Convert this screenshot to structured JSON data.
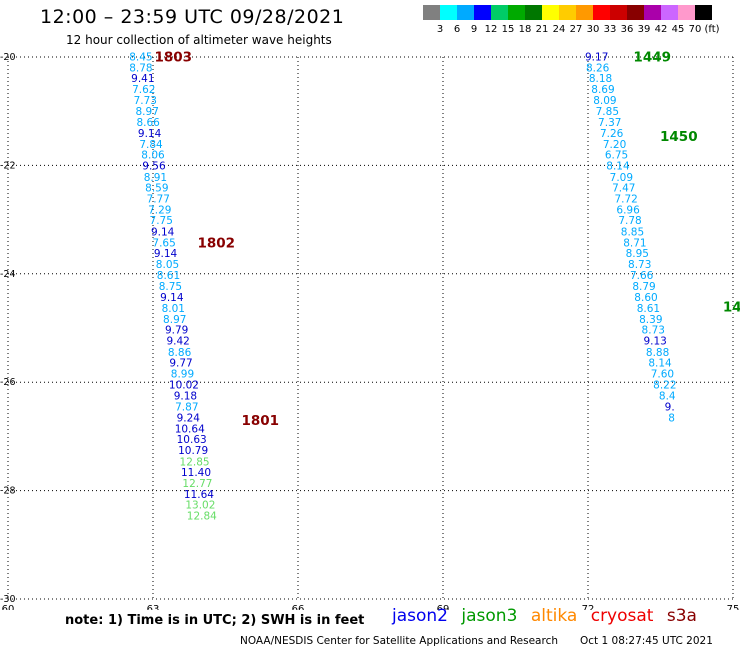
{
  "header": {
    "title": "12:00 – 23:59 UTC 09/28/2021",
    "subtitle": "12 hour collection of altimeter wave heights"
  },
  "colorbar": {
    "bins": [
      {
        "color": "#808080",
        "label": "3"
      },
      {
        "color": "#00ffff",
        "label": "6"
      },
      {
        "color": "#00aaff",
        "label": "9"
      },
      {
        "color": "#0000ff",
        "label": "12"
      },
      {
        "color": "#00cc66",
        "label": "15"
      },
      {
        "color": "#00aa00",
        "label": "18"
      },
      {
        "color": "#007700",
        "label": "21"
      },
      {
        "color": "#ffff00",
        "label": "24"
      },
      {
        "color": "#ffcc00",
        "label": "27"
      },
      {
        "color": "#ff9900",
        "label": "30"
      },
      {
        "color": "#ff0000",
        "label": "33"
      },
      {
        "color": "#cc0000",
        "label": "36"
      },
      {
        "color": "#880000",
        "label": "39"
      },
      {
        "color": "#aa00aa",
        "label": "42"
      },
      {
        "color": "#cc66ff",
        "label": "45"
      },
      {
        "color": "#ff99cc",
        "label": "70"
      },
      {
        "color": "#000000",
        "label": "(ft)"
      }
    ]
  },
  "map": {
    "lon_range": [
      60,
      75
    ],
    "lat_range": [
      -30,
      -20
    ],
    "lon_ticks": [
      "60",
      "63",
      "66",
      "69",
      "72",
      "75"
    ],
    "lat_ticks": [
      "-20",
      "-22",
      "-24",
      "-26",
      "-28",
      "-30"
    ]
  },
  "tracks": [
    {
      "obs": [
        {
          "lon": 62.75,
          "lat": -20.0,
          "value": "8.45",
          "color": "#00aaff"
        },
        {
          "lon": 62.75,
          "lat": -20.2,
          "value": "8.78",
          "color": "#00aaff"
        },
        {
          "lon": 62.79,
          "lat": -20.4,
          "value": "9.41",
          "color": "#0000cc"
        },
        {
          "lon": 62.81,
          "lat": -20.6,
          "value": "7.62",
          "color": "#00aaff"
        },
        {
          "lon": 62.84,
          "lat": -20.8,
          "value": "7.73",
          "color": "#00aaff"
        },
        {
          "lon": 62.88,
          "lat": -21.01,
          "value": "8.97",
          "color": "#00aaff"
        },
        {
          "lon": 62.9,
          "lat": -21.21,
          "value": "8.66",
          "color": "#00aaff"
        },
        {
          "lon": 62.93,
          "lat": -21.41,
          "value": "9.14",
          "color": "#0000cc"
        },
        {
          "lon": 62.96,
          "lat": -21.61,
          "value": "7.84",
          "color": "#00aaff"
        },
        {
          "lon": 63.0,
          "lat": -21.81,
          "value": "8.06",
          "color": "#00aaff"
        },
        {
          "lon": 63.02,
          "lat": -22.01,
          "value": "9.56",
          "color": "#0000cc"
        },
        {
          "lon": 63.05,
          "lat": -22.22,
          "value": "8.91",
          "color": "#00aaff"
        },
        {
          "lon": 63.08,
          "lat": -22.42,
          "value": "8.59",
          "color": "#00aaff"
        },
        {
          "lon": 63.11,
          "lat": -22.62,
          "value": "7.77",
          "color": "#00aaff"
        },
        {
          "lon": 63.14,
          "lat": -22.82,
          "value": "7.29",
          "color": "#00aaff"
        },
        {
          "lon": 63.17,
          "lat": -23.02,
          "value": "7.75",
          "color": "#00aaff"
        },
        {
          "lon": 63.2,
          "lat": -23.23,
          "value": "9.14",
          "color": "#0000cc"
        },
        {
          "lon": 63.23,
          "lat": -23.43,
          "value": "7.65",
          "color": "#00aaff"
        },
        {
          "lon": 63.26,
          "lat": -23.63,
          "value": "9.14",
          "color": "#0000cc"
        },
        {
          "lon": 63.3,
          "lat": -23.83,
          "value": "8.05",
          "color": "#00aaff"
        },
        {
          "lon": 63.32,
          "lat": -24.03,
          "value": "8.61",
          "color": "#00aaff"
        },
        {
          "lon": 63.36,
          "lat": -24.23,
          "value": "8.75",
          "color": "#00aaff"
        },
        {
          "lon": 63.39,
          "lat": -24.44,
          "value": "9.14",
          "color": "#0000cc"
        },
        {
          "lon": 63.42,
          "lat": -24.64,
          "value": "8.01",
          "color": "#00aaff"
        },
        {
          "lon": 63.45,
          "lat": -24.84,
          "value": "8.97",
          "color": "#00aaff"
        },
        {
          "lon": 63.49,
          "lat": -25.04,
          "value": "9.79",
          "color": "#0000cc"
        },
        {
          "lon": 63.52,
          "lat": -25.24,
          "value": "9.42",
          "color": "#0000cc"
        },
        {
          "lon": 63.55,
          "lat": -25.45,
          "value": "8.86",
          "color": "#00aaff"
        },
        {
          "lon": 63.58,
          "lat": -25.65,
          "value": "9.77",
          "color": "#0000cc"
        },
        {
          "lon": 63.61,
          "lat": -25.85,
          "value": "8.99",
          "color": "#00aaff"
        },
        {
          "lon": 63.64,
          "lat": -26.05,
          "value": "10.02",
          "color": "#0000cc"
        },
        {
          "lon": 63.67,
          "lat": -26.25,
          "value": "9.18",
          "color": "#0000cc"
        },
        {
          "lon": 63.7,
          "lat": -26.46,
          "value": "7.87",
          "color": "#00aaff"
        },
        {
          "lon": 63.73,
          "lat": -26.66,
          "value": "9.24",
          "color": "#0000cc"
        },
        {
          "lon": 63.76,
          "lat": -26.86,
          "value": "10.64",
          "color": "#0000cc"
        },
        {
          "lon": 63.8,
          "lat": -27.06,
          "value": "10.63",
          "color": "#0000cc"
        },
        {
          "lon": 63.83,
          "lat": -27.26,
          "value": "10.79",
          "color": "#0000cc"
        },
        {
          "lon": 63.86,
          "lat": -27.47,
          "value": "12.85",
          "color": "#66dd66"
        },
        {
          "lon": 63.89,
          "lat": -27.67,
          "value": "11.40",
          "color": "#0000cc"
        },
        {
          "lon": 63.92,
          "lat": -27.87,
          "value": "12.77",
          "color": "#66dd66"
        },
        {
          "lon": 63.95,
          "lat": -28.07,
          "value": "11.64",
          "color": "#0000cc"
        },
        {
          "lon": 63.98,
          "lat": -28.27,
          "value": "13.02",
          "color": "#66dd66"
        },
        {
          "lon": 64.01,
          "lat": -28.47,
          "value": "12.84",
          "color": "#66dd66"
        }
      ],
      "time_labels": [
        {
          "lon": 63.03,
          "lat": -20.0,
          "text": "1803",
          "color": "#880000"
        },
        {
          "lon": 63.92,
          "lat": -23.43,
          "text": "1802",
          "color": "#880000"
        },
        {
          "lon": 64.83,
          "lat": -26.71,
          "text": "1801",
          "color": "#880000"
        }
      ]
    },
    {
      "obs": [
        {
          "lon": 72.18,
          "lat": -20.0,
          "value": "9.17",
          "color": "#0000cc"
        },
        {
          "lon": 72.2,
          "lat": -20.2,
          "value": "8.26",
          "color": "#00aaff"
        },
        {
          "lon": 72.26,
          "lat": -20.4,
          "value": "8.18",
          "color": "#00aaff"
        },
        {
          "lon": 72.31,
          "lat": -20.6,
          "value": "8.69",
          "color": "#00aaff"
        },
        {
          "lon": 72.35,
          "lat": -20.8,
          "value": "8.09",
          "color": "#00aaff"
        },
        {
          "lon": 72.4,
          "lat": -21.01,
          "value": "7.85",
          "color": "#00aaff"
        },
        {
          "lon": 72.45,
          "lat": -21.21,
          "value": "7.37",
          "color": "#00aaff"
        },
        {
          "lon": 72.49,
          "lat": -21.41,
          "value": "7.26",
          "color": "#00aaff"
        },
        {
          "lon": 72.55,
          "lat": -21.61,
          "value": "7.20",
          "color": "#00aaff"
        },
        {
          "lon": 72.59,
          "lat": -21.81,
          "value": "6.75",
          "color": "#00aaff"
        },
        {
          "lon": 72.62,
          "lat": -22.01,
          "value": "8.14",
          "color": "#00aaff"
        },
        {
          "lon": 72.69,
          "lat": -22.22,
          "value": "7.09",
          "color": "#00aaff"
        },
        {
          "lon": 72.74,
          "lat": -22.42,
          "value": "7.47",
          "color": "#00aaff"
        },
        {
          "lon": 72.79,
          "lat": -22.62,
          "value": "7.72",
          "color": "#00aaff"
        },
        {
          "lon": 72.83,
          "lat": -22.82,
          "value": "6.96",
          "color": "#00aaff"
        },
        {
          "lon": 72.87,
          "lat": -23.02,
          "value": "7.78",
          "color": "#00aaff"
        },
        {
          "lon": 72.92,
          "lat": -23.23,
          "value": "8.85",
          "color": "#00aaff"
        },
        {
          "lon": 72.97,
          "lat": -23.43,
          "value": "8.71",
          "color": "#00aaff"
        },
        {
          "lon": 73.02,
          "lat": -23.63,
          "value": "8.95",
          "color": "#00aaff"
        },
        {
          "lon": 73.07,
          "lat": -23.83,
          "value": "8.73",
          "color": "#00aaff"
        },
        {
          "lon": 73.11,
          "lat": -24.03,
          "value": "7.66",
          "color": "#00aaff"
        },
        {
          "lon": 73.16,
          "lat": -24.23,
          "value": "8.79",
          "color": "#00aaff"
        },
        {
          "lon": 73.2,
          "lat": -24.44,
          "value": "8.60",
          "color": "#00aaff"
        },
        {
          "lon": 73.25,
          "lat": -24.64,
          "value": "8.61",
          "color": "#00aaff"
        },
        {
          "lon": 73.3,
          "lat": -24.84,
          "value": "8.39",
          "color": "#00aaff"
        },
        {
          "lon": 73.35,
          "lat": -25.04,
          "value": "8.73",
          "color": "#00aaff"
        },
        {
          "lon": 73.39,
          "lat": -25.24,
          "value": "9.13",
          "color": "#0000cc"
        },
        {
          "lon": 73.44,
          "lat": -25.45,
          "value": "8.88",
          "color": "#00aaff"
        },
        {
          "lon": 73.49,
          "lat": -25.65,
          "value": "8.14",
          "color": "#00aaff"
        },
        {
          "lon": 73.54,
          "lat": -25.85,
          "value": "7.60",
          "color": "#00aaff"
        },
        {
          "lon": 73.59,
          "lat": -26.05,
          "value": "8.22",
          "color": "#00aaff"
        },
        {
          "lon": 73.64,
          "lat": -26.25,
          "value": "8.4",
          "color": "#00aaff"
        },
        {
          "lon": 73.69,
          "lat": -26.46,
          "value": "9.",
          "color": "#0000cc"
        },
        {
          "lon": 73.73,
          "lat": -26.66,
          "value": "8",
          "color": "#00aaff"
        }
      ],
      "time_labels": [
        {
          "lon": 72.94,
          "lat": -20.0,
          "text": "1449",
          "color": "#008800"
        },
        {
          "lon": 73.49,
          "lat": -21.47,
          "text": "1450",
          "color": "#008800"
        },
        {
          "lon": 74.79,
          "lat": -24.61,
          "text": "14",
          "color": "#008800"
        }
      ]
    }
  ],
  "footer": {
    "note": "note:  1) Time is in UTC;  2) SWH is in feet",
    "legend": [
      {
        "name": "jason2",
        "color": "#0000ee"
      },
      {
        "name": "jason3",
        "color": "#009900"
      },
      {
        "name": "altika",
        "color": "#ff8800"
      },
      {
        "name": "cryosat",
        "color": "#ee0000"
      },
      {
        "name": "s3a",
        "color": "#880000"
      }
    ],
    "credit": "NOAA/NESDIS Center for Satellite Applications and Research",
    "timestamp": "Oct  1 08:27:45 UTC 2021"
  }
}
